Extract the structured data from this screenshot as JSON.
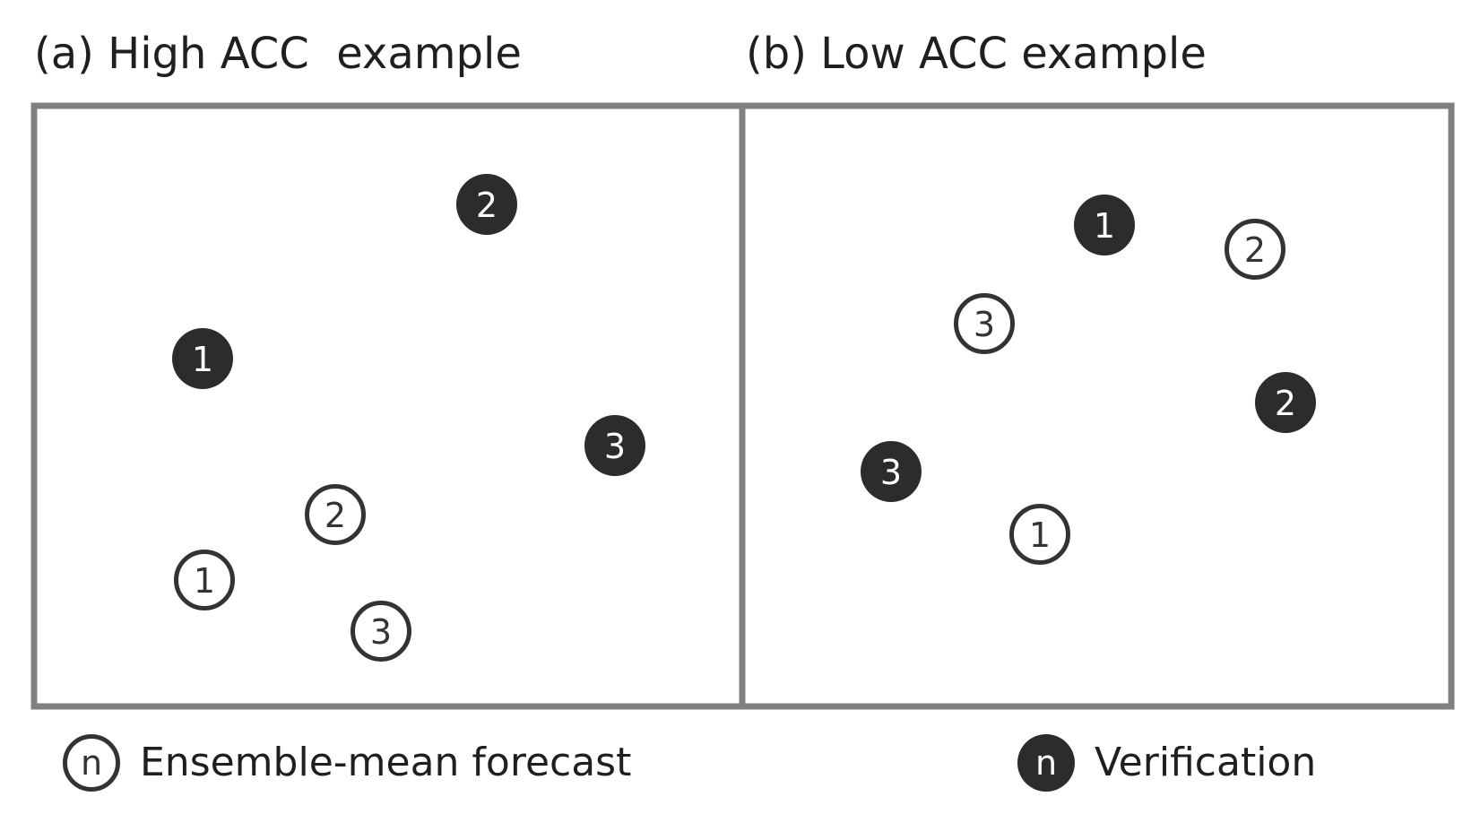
{
  "panels": [
    {
      "title": "(a) High ACC  example",
      "points": [
        {
          "label": "2",
          "kind": "verification"
        },
        {
          "label": "1",
          "kind": "verification"
        },
        {
          "label": "3",
          "kind": "verification"
        },
        {
          "label": "2",
          "kind": "forecast"
        },
        {
          "label": "1",
          "kind": "forecast"
        },
        {
          "label": "3",
          "kind": "forecast"
        }
      ]
    },
    {
      "title": "(b) Low ACC example",
      "points": [
        {
          "label": "1",
          "kind": "verification"
        },
        {
          "label": "2",
          "kind": "forecast"
        },
        {
          "label": "3",
          "kind": "forecast"
        },
        {
          "label": "2",
          "kind": "verification"
        },
        {
          "label": "3",
          "kind": "verification"
        },
        {
          "label": "1",
          "kind": "forecast"
        }
      ]
    }
  ],
  "legend": {
    "forecast": {
      "symbol": "n",
      "label": "Ensemble-mean forecast"
    },
    "verification": {
      "symbol": "n",
      "label": "Verification"
    }
  },
  "colors": {
    "frame": "#808080",
    "filled_marker": "#2e2b2c",
    "open_marker_stroke": "#333333",
    "text": "#1f1f1f"
  }
}
